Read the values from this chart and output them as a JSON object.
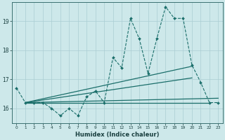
{
  "title": "",
  "xlabel": "Humidex (Indice chaleur)",
  "ylabel": "",
  "bg_color": "#cde8ea",
  "grid_color": "#aacdd2",
  "line_color": "#1a6e6a",
  "xlim": [
    -0.5,
    23.5
  ],
  "ylim": [
    15.5,
    19.65
  ],
  "yticks": [
    16,
    17,
    18,
    19
  ],
  "xticks": [
    0,
    1,
    2,
    3,
    4,
    5,
    6,
    7,
    8,
    9,
    10,
    11,
    12,
    13,
    14,
    15,
    16,
    17,
    18,
    19,
    20,
    21,
    22,
    23
  ],
  "series_volatile": {
    "x": [
      0,
      1,
      2,
      3,
      4,
      5,
      6,
      7,
      8,
      9,
      10,
      11,
      12,
      13,
      14,
      15,
      16,
      17,
      18,
      19,
      20,
      21,
      22,
      23
    ],
    "y": [
      16.7,
      16.2,
      16.2,
      16.2,
      16.0,
      15.75,
      16.0,
      15.75,
      16.4,
      16.6,
      16.2,
      17.75,
      17.4,
      19.1,
      18.4,
      17.2,
      18.4,
      19.5,
      19.1,
      19.1,
      17.5,
      16.9,
      16.2,
      16.2
    ]
  },
  "series_flat": {
    "x": [
      1,
      22
    ],
    "y": [
      16.2,
      16.2
    ]
  },
  "series_trend1": {
    "x": [
      1,
      20
    ],
    "y": [
      16.2,
      17.45
    ]
  },
  "series_trend2": {
    "x": [
      1,
      20
    ],
    "y": [
      16.2,
      17.05
    ]
  },
  "series_trend3": {
    "x": [
      1,
      23
    ],
    "y": [
      16.2,
      16.35
    ]
  }
}
